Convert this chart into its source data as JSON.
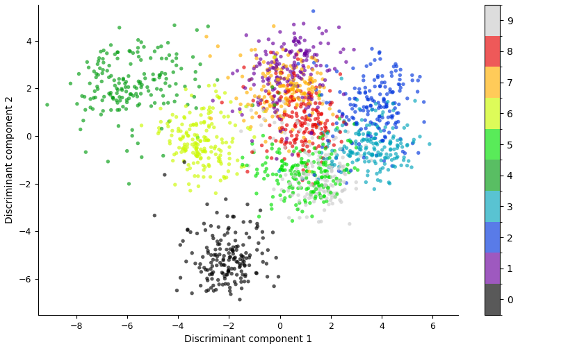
{
  "title": "",
  "xlabel": "Discriminant component 1",
  "ylabel": "Discriminant component 2",
  "xlim": [
    -9.5,
    7
  ],
  "ylim": [
    -7.5,
    5.5
  ],
  "colormap": "nipy_spectral",
  "n_classes": 10,
  "alpha": 0.65,
  "marker_size": 15,
  "colorbar_ticks": [
    0,
    1,
    2,
    3,
    4,
    5,
    6,
    7,
    8,
    9
  ],
  "figsize": [
    8.17,
    5.03
  ],
  "dpi": 100,
  "xlabel_fontsize": 10,
  "ylabel_fontsize": 10,
  "tick_fontsize": 9
}
